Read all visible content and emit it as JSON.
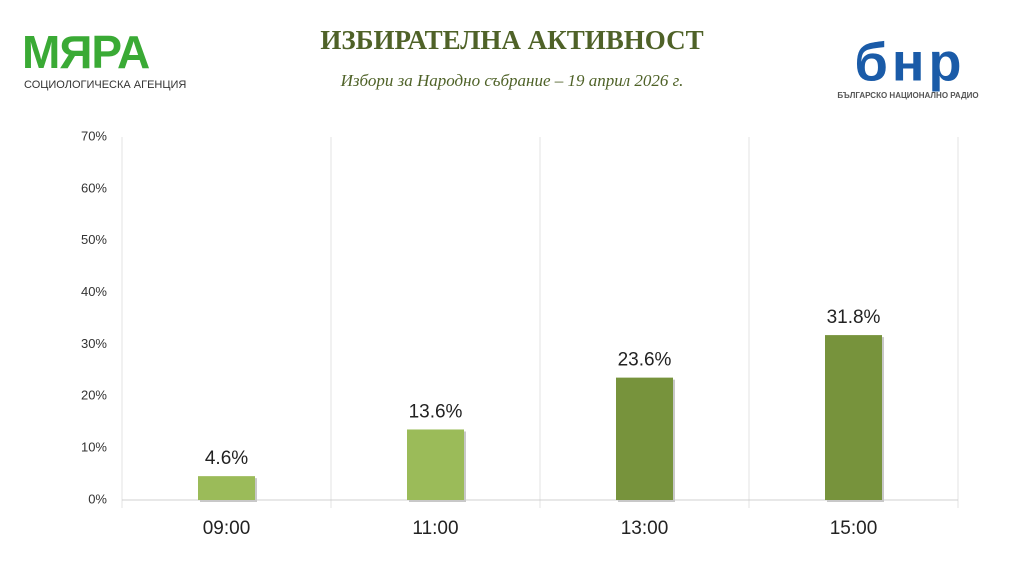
{
  "logo_left": {
    "name": "МЯРА",
    "tagline": "СОЦИОЛОГИЧЕСКА АГЕНЦИЯ"
  },
  "logo_right": {
    "name": "бнр",
    "tagline": "БЪЛГАРСКО НАЦИОНАЛНО РАДИО"
  },
  "chart_data": {
    "type": "bar",
    "title": "ИЗБИРАТЕЛНА АКТИВНОСТ",
    "subtitle": "Избори за Народно събрание – 19 април 2026 г.",
    "categories": [
      "09:00",
      "11:00",
      "13:00",
      "15:00"
    ],
    "values": [
      4.6,
      13.6,
      23.6,
      31.8
    ],
    "value_labels": [
      "4.6%",
      "13.6%",
      "23.6%",
      "31.8%"
    ],
    "colors": [
      "#9bbb59",
      "#9bbb59",
      "#77933c",
      "#77933c"
    ],
    "ylim": [
      0,
      70
    ],
    "yticks": [
      {
        "value": 0,
        "label": "0%"
      },
      {
        "value": 10,
        "label": "10%"
      },
      {
        "value": 20,
        "label": "20%"
      },
      {
        "value": 30,
        "label": "30%"
      },
      {
        "value": 40,
        "label": "40%"
      },
      {
        "value": 50,
        "label": "50%"
      },
      {
        "value": 60,
        "label": "60%"
      },
      {
        "value": 70,
        "label": "70%"
      }
    ],
    "grid": "vertical"
  }
}
